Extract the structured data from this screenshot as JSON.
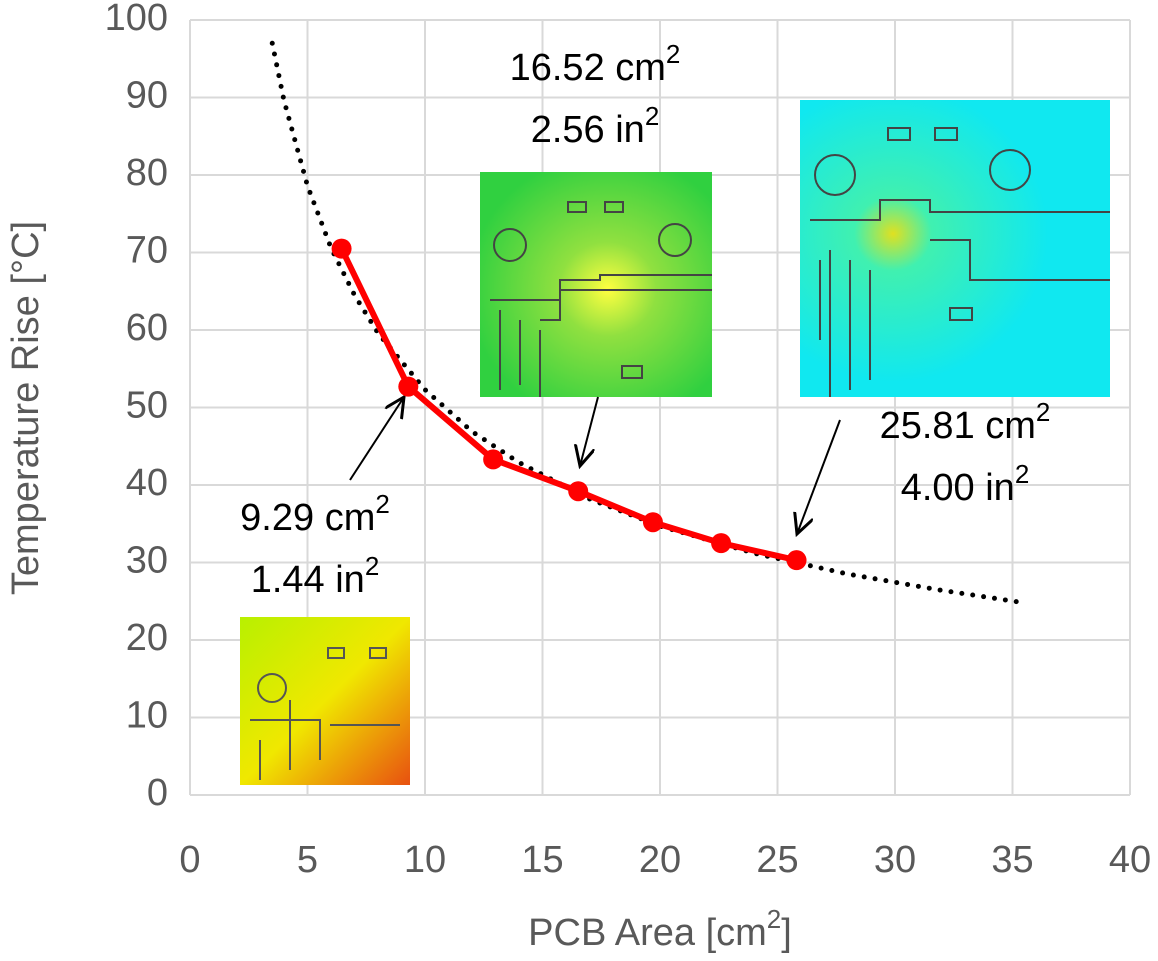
{
  "chart_data": {
    "type": "line",
    "x_label": [
      "PCB Area [cm",
      "2",
      "]"
    ],
    "y_label": "Temperature Rise [°C]",
    "xlim": [
      0,
      40
    ],
    "xticks": [
      0,
      5,
      10,
      15,
      20,
      25,
      30,
      35,
      40
    ],
    "ylim": [
      0,
      100
    ],
    "yticks": [
      0,
      10,
      20,
      30,
      40,
      50,
      60,
      70,
      80,
      90,
      100
    ],
    "grid": true,
    "series": [
      {
        "color": "#ff0000",
        "x": [
          6.45,
          9.29,
          12.9,
          16.52,
          19.7,
          22.6,
          25.81
        ],
        "values": [
          70.5,
          52.7,
          43.3,
          39.2,
          35.2,
          32.5,
          30.3
        ]
      }
    ],
    "trendline": {
      "color": "#000000",
      "x": [
        3.5,
        4,
        5,
        6,
        7,
        8,
        10,
        12,
        14,
        17,
        20,
        24,
        28,
        32,
        35.5
      ],
      "values": [
        97,
        89.6,
        78.6,
        70.6,
        64.5,
        59.6,
        52.3,
        46.9,
        42.9,
        38.2,
        34.7,
        31.2,
        28.5,
        26.4,
        24.8
      ]
    },
    "annotations": [
      {
        "lines": [
          [
            "9.29 cm",
            "2"
          ],
          [
            "1.44 in",
            "2"
          ]
        ]
      },
      {
        "lines": [
          [
            "16.52 cm",
            "2"
          ],
          [
            "2.56 in",
            "2"
          ]
        ]
      },
      {
        "lines": [
          [
            "25.81 cm",
            "2"
          ],
          [
            "4.00 in",
            "2"
          ]
        ]
      }
    ]
  }
}
